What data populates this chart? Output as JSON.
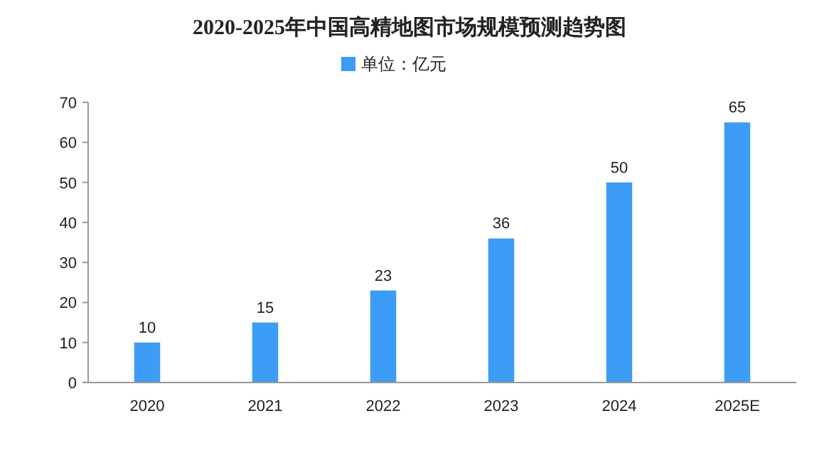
{
  "chart_data": {
    "type": "bar",
    "title": "2020-2025年中国高精地图市场规模预测趋势图",
    "categories": [
      "2020",
      "2021",
      "2022",
      "2023",
      "2024",
      "2025E"
    ],
    "series": [
      {
        "name": "单位：亿元",
        "color": "#3d9cf5",
        "values": [
          10,
          15,
          23,
          36,
          50,
          65
        ]
      }
    ],
    "ylim": [
      0,
      70
    ],
    "yticks": [
      0,
      10,
      20,
      30,
      40,
      50,
      60,
      70
    ],
    "grid": false,
    "legend": "top",
    "data_labels": true
  }
}
